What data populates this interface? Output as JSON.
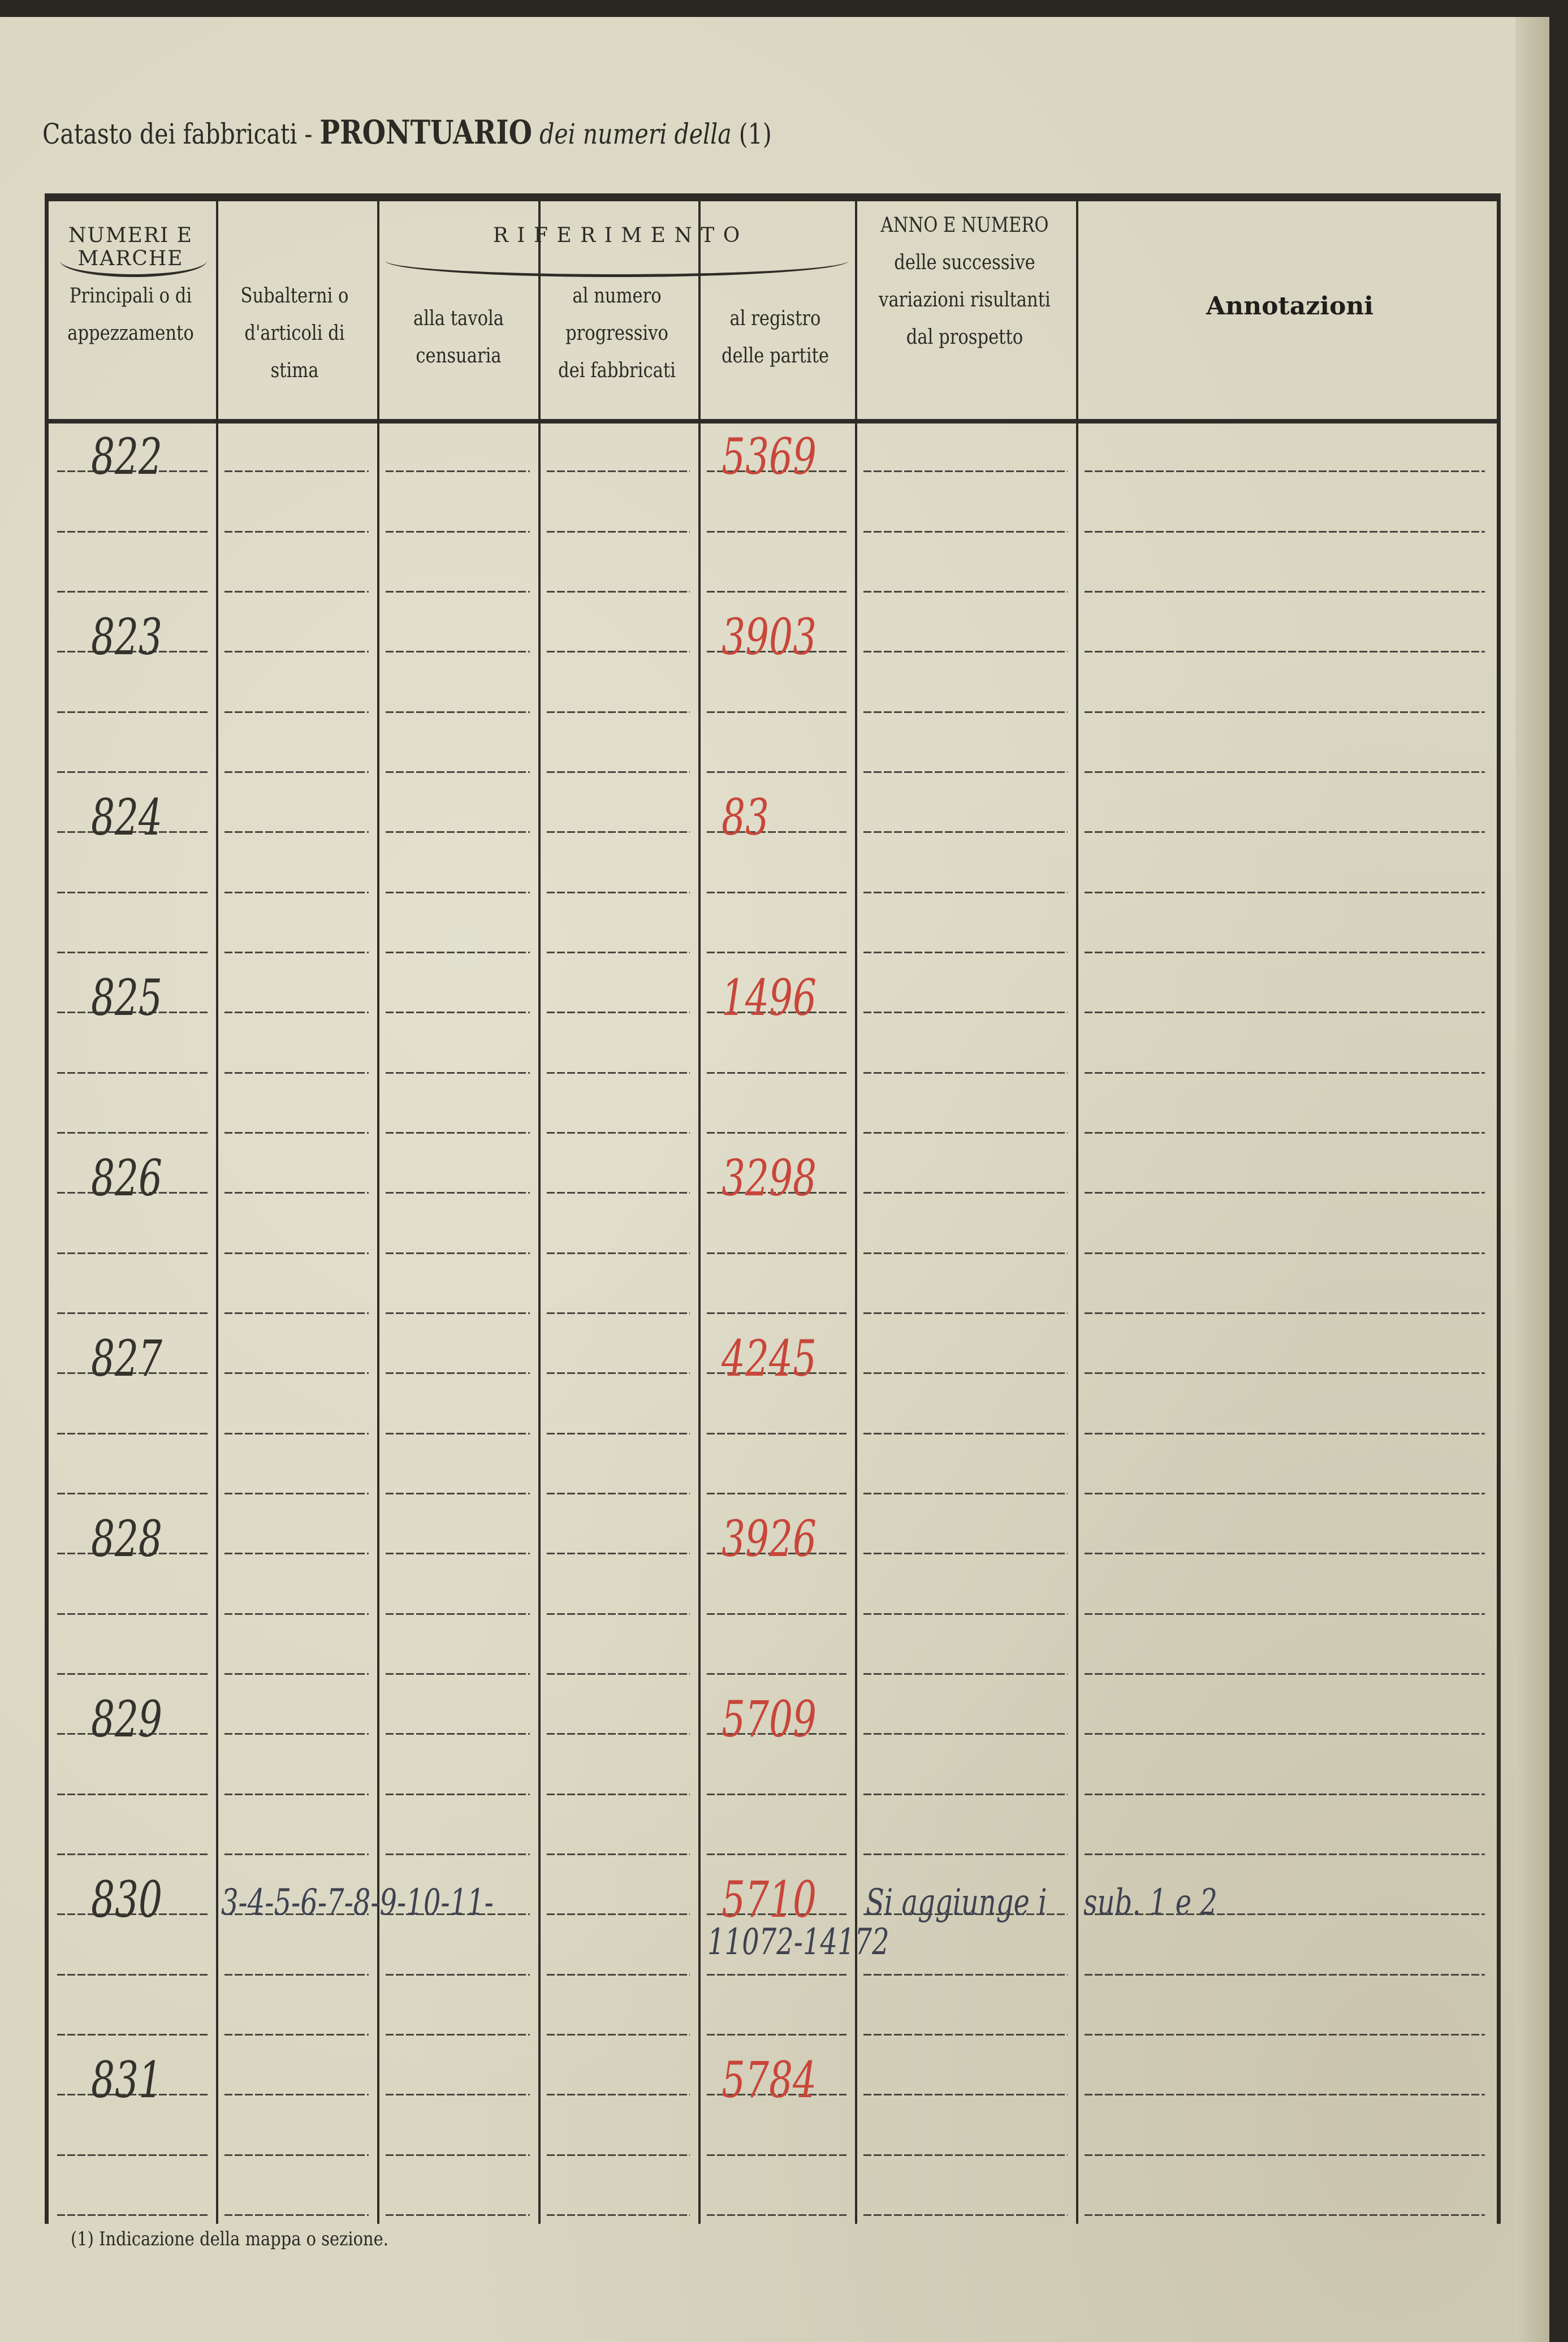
{
  "title": {
    "prefix": "Catasto dei fabbricati -",
    "bold": "PRONTUARIO",
    "italic": "dei numeri della",
    "note": "(1)"
  },
  "header": {
    "group1": "NUMERI E MARCHE",
    "group2": "R I F E R I M E N T O",
    "cols": [
      "Principali o di appezzamento",
      "Subalterni o d'articoli di stima",
      "alla tavola censuaria",
      "al numero progressivo dei fabbricati",
      "al registro delle partite",
      "ANNO E NUMERO delle successive variazioni risultanti dal prospetto",
      "Annotazioni"
    ]
  },
  "rows": [
    {
      "principale": "822",
      "registro": "5369"
    },
    {
      "principale": "823",
      "registro": "3903"
    },
    {
      "principale": "824",
      "registro": "83"
    },
    {
      "principale": "825",
      "registro": "1496"
    },
    {
      "principale": "826",
      "registro": "3298"
    },
    {
      "principale": "827",
      "registro": "4245"
    },
    {
      "principale": "828",
      "registro": "3926"
    },
    {
      "principale": "829",
      "registro": "5709"
    },
    {
      "principale": "830",
      "subalterni": "3-4-5-6-7-8-9-10-11-",
      "registro": "5710",
      "registro_extra": "11072-14172",
      "variazioni": "Si aggiunge i",
      "annotazioni": "sub. 1 e 2"
    },
    {
      "principale": "831",
      "registro": "5784"
    }
  ],
  "footer": "(1) Indicazione della mappa o sezione."
}
